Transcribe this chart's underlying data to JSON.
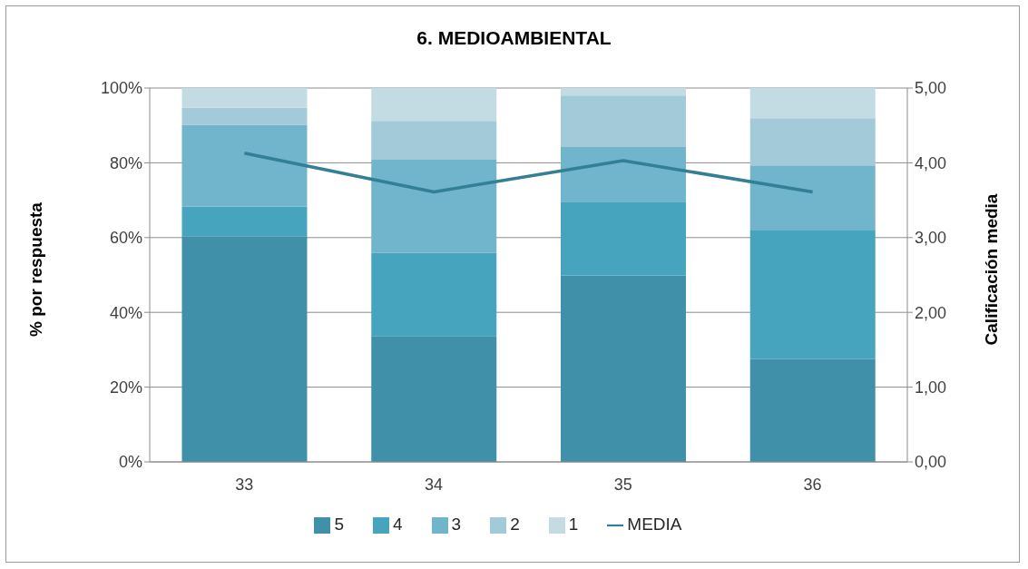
{
  "chart_data": {
    "type": "bar",
    "title": "6. MEDIOAMBIENTAL",
    "ylabel": "% por respuesta",
    "y2label": "Calificación media",
    "categories": [
      "33",
      "34",
      "35",
      "36"
    ],
    "stacked": true,
    "series": [
      {
        "name": "5",
        "color": "#4190aa",
        "values": [
          60.4,
          33.7,
          49.9,
          27.5
        ]
      },
      {
        "name": "4",
        "color": "#46a4be",
        "values": [
          7.9,
          22.2,
          19.7,
          34.4
        ]
      },
      {
        "name": "3",
        "color": "#70b5cb",
        "values": [
          21.9,
          24.9,
          14.6,
          17.4
        ]
      },
      {
        "name": "2",
        "color": "#a2cad9",
        "values": [
          4.5,
          10.4,
          13.8,
          12.6
        ]
      },
      {
        "name": "1",
        "color": "#c3dce4",
        "values": [
          5.3,
          8.8,
          2.0,
          8.1
        ]
      },
      {
        "name": "MEDIA",
        "type": "line",
        "axis": "y2",
        "color": "#327f96",
        "values": [
          4.13,
          3.61,
          4.03,
          3.61
        ]
      }
    ],
    "ylim": [
      0,
      100
    ],
    "yticks": [
      {
        "value": 0,
        "label": "0%"
      },
      {
        "value": 20,
        "label": "20%"
      },
      {
        "value": 40,
        "label": "40%"
      },
      {
        "value": 60,
        "label": "60%"
      },
      {
        "value": 80,
        "label": "80%"
      },
      {
        "value": 100,
        "label": "100%"
      }
    ],
    "y2lim": [
      0,
      5
    ],
    "y2ticks": [
      {
        "value": 0,
        "label": "0,00"
      },
      {
        "value": 1,
        "label": "1,00"
      },
      {
        "value": 2,
        "label": "2,00"
      },
      {
        "value": 3,
        "label": "3,00"
      },
      {
        "value": 4,
        "label": "4,00"
      },
      {
        "value": 5,
        "label": "5,00"
      }
    ],
    "grid": "y",
    "legend": "bottom",
    "marker": "none",
    "line_style": "solid"
  }
}
